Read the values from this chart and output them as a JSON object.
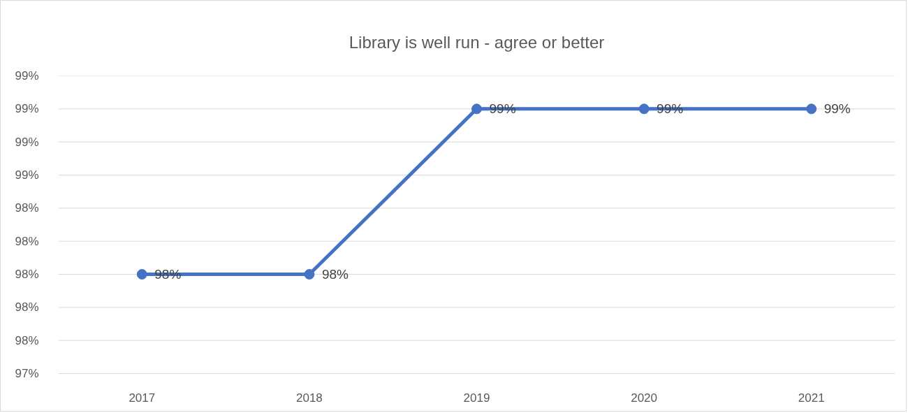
{
  "chart_data": {
    "type": "line",
    "title": "Library is well run - agree or better",
    "categories": [
      "2017",
      "2018",
      "2019",
      "2020",
      "2021"
    ],
    "values": [
      98,
      98,
      99,
      99,
      99
    ],
    "color": "#4472c4",
    "value_labels": [
      "98%",
      "98%",
      "99%",
      "99%",
      "99%"
    ],
    "ylim": [
      97.4,
      99.2
    ],
    "yticks": [
      {
        "value": 97.4,
        "label": "97%"
      },
      {
        "value": 97.6,
        "label": "98%"
      },
      {
        "value": 97.8,
        "label": "98%"
      },
      {
        "value": 98.0,
        "label": "98%"
      },
      {
        "value": 98.2,
        "label": "98%"
      },
      {
        "value": 98.4,
        "label": "98%"
      },
      {
        "value": 98.6,
        "label": "99%"
      },
      {
        "value": 98.8,
        "label": "99%"
      },
      {
        "value": 99.0,
        "label": "99%"
      },
      {
        "value": 99.2,
        "label": "99%"
      }
    ],
    "grid": "y",
    "marker": "circle",
    "line_style": "solid"
  }
}
